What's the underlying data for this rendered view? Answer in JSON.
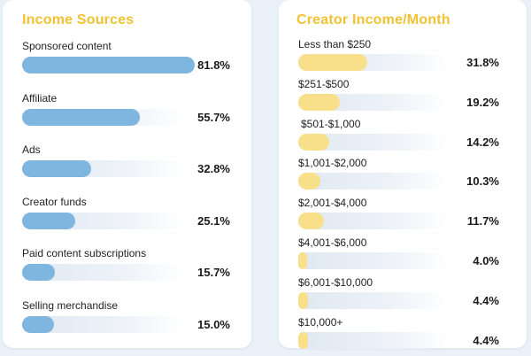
{
  "colors": {
    "page_background": "#eaf1f8",
    "card_background": "#ffffff",
    "title": "#f1c232",
    "income_sources_bar": "#7fb6df",
    "creator_income_bar": "#f8df8a"
  },
  "chart_data": [
    {
      "type": "bar",
      "orientation": "horizontal",
      "title": "Income Sources",
      "categories": [
        "Sponsored content",
        "Affiliate",
        "Ads",
        "Creator funds",
        "Paid content subscriptions",
        "Selling merchandise"
      ],
      "values": [
        81.8,
        55.7,
        32.8,
        25.1,
        15.7,
        15.0
      ],
      "value_labels": [
        "81.8%",
        "55.7%",
        "32.8%",
        "25.1%",
        "15.7%",
        "15.0%"
      ],
      "xlim": [
        0,
        100
      ],
      "grid": false,
      "legend": "none"
    },
    {
      "type": "bar",
      "orientation": "horizontal",
      "title": "Creator Income/Month",
      "categories": [
        "Less than $250",
        "$251-$500",
        "$501-$1,000",
        "$1,001-$2,000",
        "$2,001-$4,000",
        "$4,001-$6,000",
        "$6,001-$10,000",
        "$10,000+"
      ],
      "values": [
        31.8,
        19.2,
        14.2,
        10.3,
        11.7,
        4.0,
        4.4,
        4.4
      ],
      "value_labels": [
        "31.8%",
        "19.2%",
        "14.2%",
        "10.3%",
        "11.7%",
        "4.0%",
        "4.4%",
        "4.4%"
      ],
      "xlim": [
        0,
        100
      ],
      "grid": false,
      "legend": "none"
    }
  ]
}
